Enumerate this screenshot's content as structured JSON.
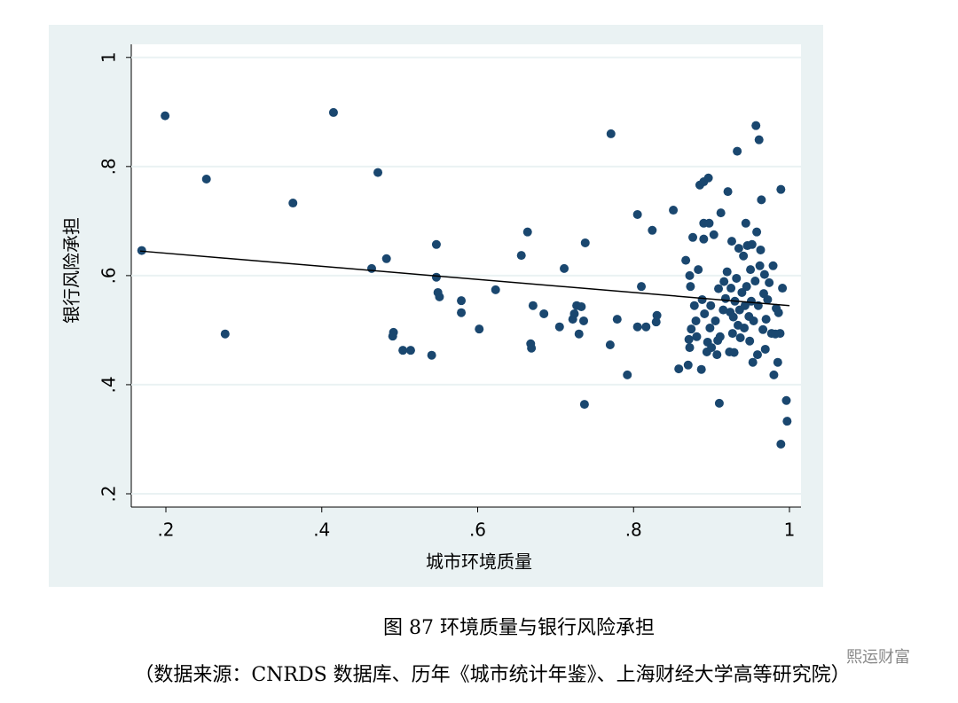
{
  "chart_data": {
    "type": "scatter",
    "xlabel": "城市环境质量",
    "ylabel": "银行风险承担",
    "caption": "图 87 环境质量与银行风险承担",
    "source": "（数据来源：CNRDS 数据库、历年《城市统计年鉴》、上海财经大学高等研究院）",
    "watermark": "熙运财富",
    "color": "#1a476f",
    "fit_color": "#000000",
    "grid": true,
    "xlim": [
      0.1556,
      1.0148
    ],
    "ylim": [
      0.1756,
      1.024
    ],
    "xticks": [
      {
        "value": 0.2,
        "label": ".2"
      },
      {
        "value": 0.4,
        "label": ".4"
      },
      {
        "value": 0.6,
        "label": ".6"
      },
      {
        "value": 0.8,
        "label": ".8"
      },
      1
    ],
    "yticks": [
      {
        "value": 0.2,
        "label": ".2"
      },
      {
        "value": 0.4,
        "label": ".4"
      },
      {
        "value": 0.6,
        "label": ".6"
      },
      {
        "value": 0.8,
        "label": ".8"
      },
      1
    ],
    "x": [
      0.169,
      0.199,
      0.252,
      0.276,
      0.363,
      0.415,
      0.464,
      0.472,
      0.483,
      0.492,
      0.491,
      0.504,
      0.514,
      0.541,
      0.547,
      0.547,
      0.549,
      0.551,
      0.579,
      0.579,
      0.602,
      0.623,
      0.656,
      0.664,
      0.668,
      0.669,
      0.671,
      0.685,
      0.705,
      0.711,
      0.722,
      0.724,
      0.727,
      0.733,
      0.73,
      0.736,
      0.738,
      0.737,
      0.771,
      0.77,
      0.779,
      0.792,
      0.805,
      0.805,
      0.81,
      0.816,
      0.824,
      0.829,
      0.83,
      0.851,
      0.858,
      0.867,
      0.87,
      0.871,
      0.872,
      0.872,
      0.873,
      0.876,
      0.874,
      0.878,
      0.88,
      0.881,
      0.883,
      0.885,
      0.887,
      0.888,
      0.89,
      0.89,
      0.89,
      0.891,
      0.894,
      0.895,
      0.896,
      0.897,
      0.898,
      0.9,
      0.899,
      0.903,
      0.905,
      0.907,
      0.908,
      0.909,
      0.91,
      0.911,
      0.912,
      0.915,
      0.916,
      0.918,
      0.92,
      0.921,
      0.923,
      0.924,
      0.925,
      0.926,
      0.927,
      0.928,
      0.929,
      0.93,
      0.932,
      0.933,
      0.934,
      0.935,
      0.936,
      0.937,
      0.939,
      0.941,
      0.942,
      0.943,
      0.944,
      0.945,
      0.946,
      0.948,
      0.949,
      0.95,
      0.951,
      0.952,
      0.953,
      0.954,
      0.957,
      0.956,
      0.958,
      0.959,
      0.96,
      0.961,
      0.962,
      0.963,
      0.964,
      0.966,
      0.967,
      0.968,
      0.969,
      0.97,
      0.972,
      0.974,
      0.977,
      0.979,
      0.98,
      0.982,
      0.983,
      0.985,
      0.986,
      0.988,
      0.989,
      0.989,
      0.991,
      0.996,
      0.997
    ],
    "values": [
      0.646,
      0.893,
      0.777,
      0.493,
      0.733,
      0.899,
      0.613,
      0.789,
      0.631,
      0.496,
      0.489,
      0.463,
      0.463,
      0.454,
      0.657,
      0.597,
      0.569,
      0.561,
      0.554,
      0.532,
      0.502,
      0.574,
      0.637,
      0.68,
      0.475,
      0.467,
      0.545,
      0.53,
      0.506,
      0.613,
      0.52,
      0.53,
      0.545,
      0.543,
      0.493,
      0.517,
      0.66,
      0.364,
      0.86,
      0.473,
      0.52,
      0.418,
      0.712,
      0.506,
      0.58,
      0.506,
      0.683,
      0.515,
      0.527,
      0.72,
      0.429,
      0.628,
      0.436,
      0.483,
      0.468,
      0.6,
      0.58,
      0.67,
      0.502,
      0.545,
      0.517,
      0.488,
      0.611,
      0.766,
      0.428,
      0.556,
      0.772,
      0.696,
      0.667,
      0.53,
      0.46,
      0.478,
      0.779,
      0.696,
      0.504,
      0.468,
      0.545,
      0.675,
      0.517,
      0.455,
      0.481,
      0.576,
      0.366,
      0.488,
      0.715,
      0.537,
      0.589,
      0.558,
      0.607,
      0.754,
      0.46,
      0.533,
      0.577,
      0.663,
      0.494,
      0.524,
      0.459,
      0.553,
      0.595,
      0.828,
      0.509,
      0.65,
      0.537,
      0.486,
      0.569,
      0.636,
      0.504,
      0.545,
      0.696,
      0.58,
      0.655,
      0.525,
      0.48,
      0.611,
      0.553,
      0.657,
      0.441,
      0.517,
      0.875,
      0.59,
      0.68,
      0.455,
      0.545,
      0.849,
      0.618,
      0.647,
      0.739,
      0.501,
      0.567,
      0.602,
      0.465,
      0.52,
      0.556,
      0.587,
      0.494,
      0.618,
      0.418,
      0.493,
      0.54,
      0.441,
      0.532,
      0.494,
      0.758,
      0.291,
      0.577,
      0.371,
      0.333
    ],
    "fit": {
      "x": [
        0.167,
        1.0
      ],
      "values": [
        0.645,
        0.545
      ]
    }
  }
}
